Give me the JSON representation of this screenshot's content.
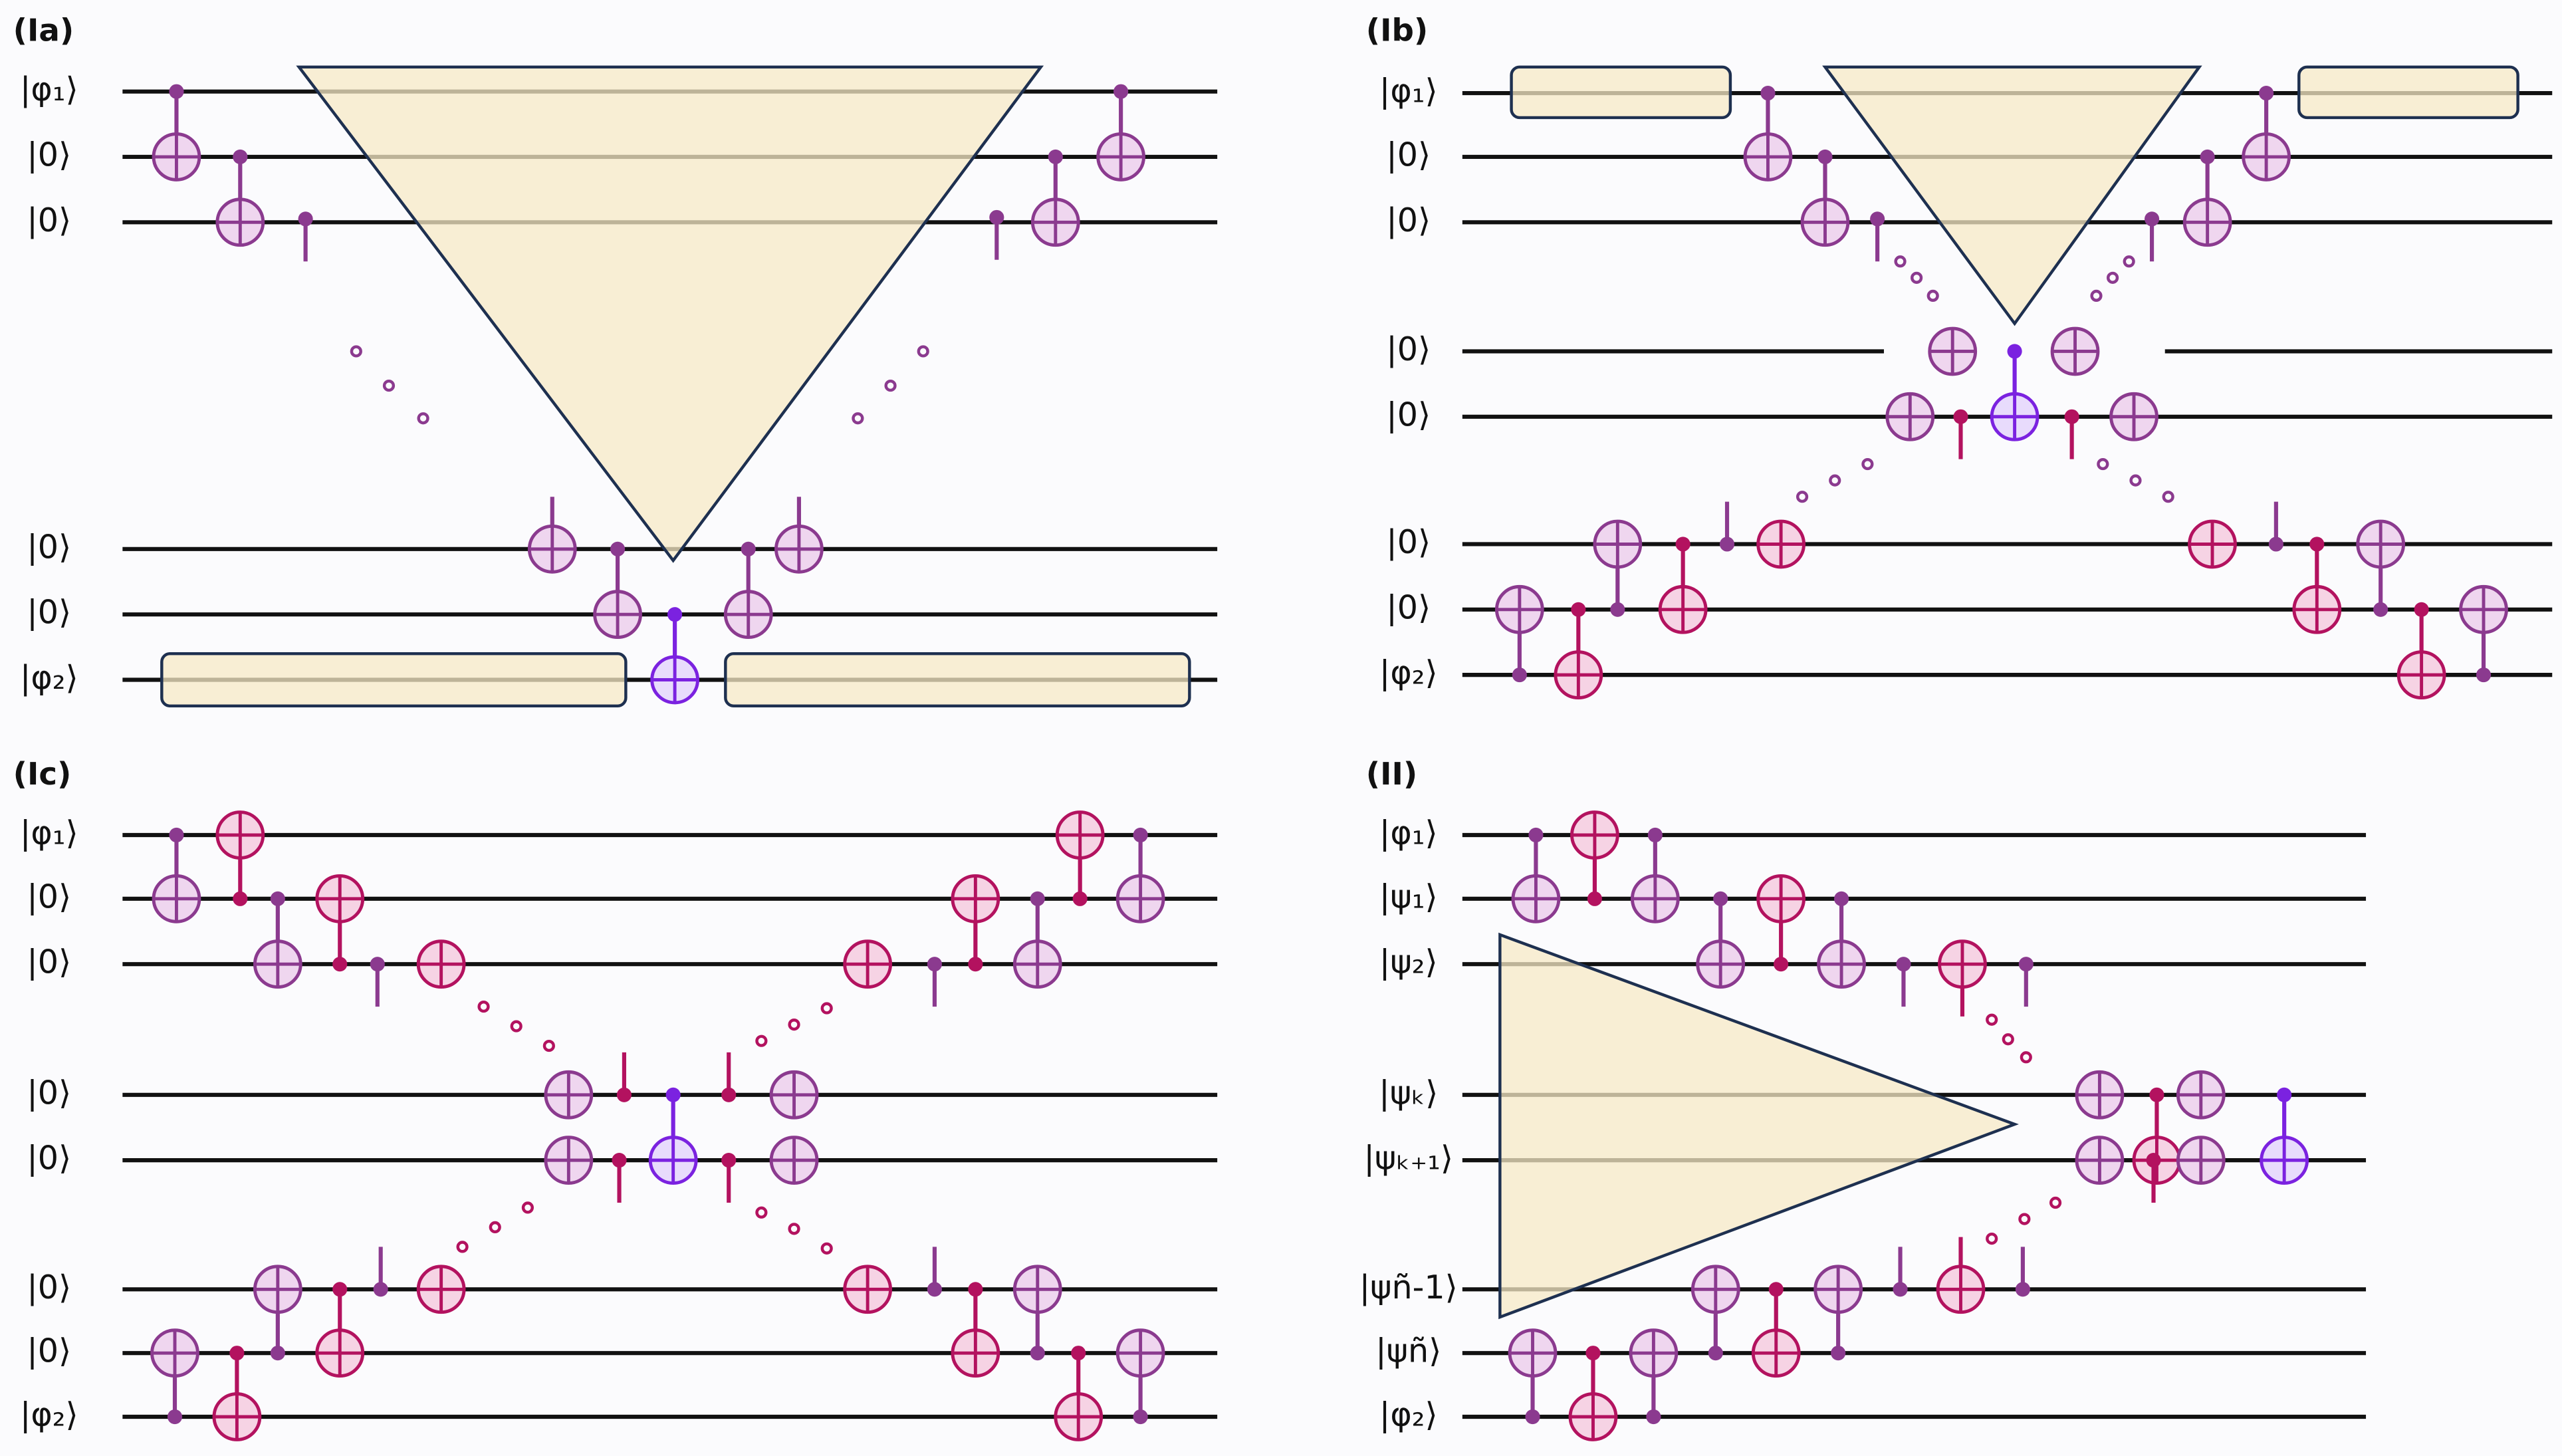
{
  "panels": [
    {
      "label": "(Ia)",
      "wires": [
        "|φ₁⟩",
        "|0⟩",
        "|0⟩",
        "|0⟩",
        "|0⟩",
        "|φ₂⟩"
      ]
    },
    {
      "label": "(Ib)",
      "wires": [
        "|φ₁⟩",
        "|0⟩",
        "|0⟩",
        "|0⟩",
        "|0⟩",
        "|0⟩",
        "|0⟩",
        "|φ₂⟩"
      ]
    },
    {
      "label": "(Ic)",
      "wires": [
        "|φ₁⟩",
        "|0⟩",
        "|0⟩",
        "|0⟩",
        "|0⟩",
        "|0⟩",
        "|0⟩",
        "|φ₂⟩"
      ]
    },
    {
      "label": "(II)",
      "wires": [
        "|φ₁⟩",
        "|ψ₁⟩",
        "|ψ₂⟩",
        "|ψₖ⟩",
        "|ψₖ₊₁⟩",
        "|ψñ-1⟩",
        "|ψñ⟩",
        "|φ₂⟩"
      ]
    }
  ]
}
